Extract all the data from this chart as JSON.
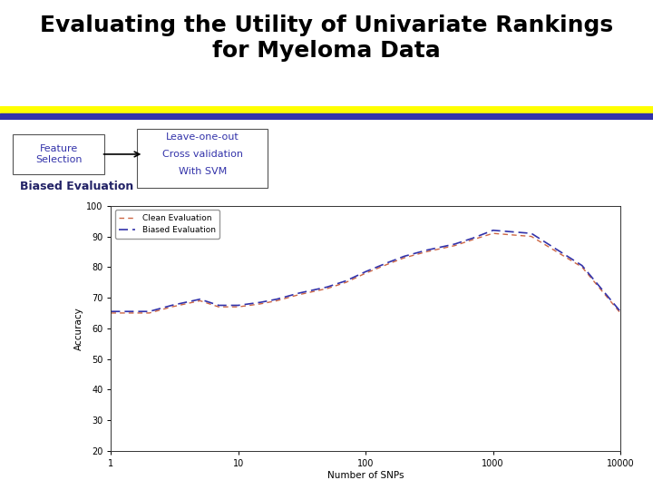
{
  "title_line1": "Evaluating the Utility of Univariate Rankings",
  "title_line2": "for Myeloma Data",
  "title_fontsize": 18,
  "title_color": "#000000",
  "bg_color": "#ffffff",
  "box1_text": "Feature\nSelection",
  "box2_line1": "Leave-one-out",
  "box2_line2": "Cross validation",
  "box2_line3": "With SVM",
  "biased_label": "Biased Evaluation",
  "biased_color": "#222266",
  "xlabel": "Number of SNPs",
  "ylabel": "Accuracy",
  "yticks": [
    20,
    30,
    40,
    50,
    60,
    70,
    80,
    90,
    100
  ],
  "xtick_labels": [
    "1",
    "10",
    "100",
    "1000",
    "10000"
  ],
  "x_data": [
    1,
    2,
    3,
    5,
    7,
    10,
    15,
    20,
    30,
    50,
    70,
    100,
    150,
    200,
    300,
    500,
    700,
    1000,
    2000,
    5000,
    10000
  ],
  "clean_eval": [
    65,
    65,
    67,
    69,
    67,
    67,
    68,
    69,
    71,
    73,
    75,
    78,
    81,
    83,
    85,
    87,
    89,
    91,
    90,
    80,
    65
  ],
  "biased_eval": [
    65.5,
    65.5,
    67.5,
    69.5,
    67.5,
    67.5,
    68.5,
    69.5,
    71.5,
    73.5,
    75.5,
    78.5,
    81.5,
    83.5,
    85.5,
    87.5,
    89.5,
    92,
    91,
    80.5,
    65.5
  ],
  "clean_color": "#cc6644",
  "biased_line_color": "#3333aa",
  "legend_clean": "Clean Evaluation",
  "legend_biased": "Biased Evaluation"
}
